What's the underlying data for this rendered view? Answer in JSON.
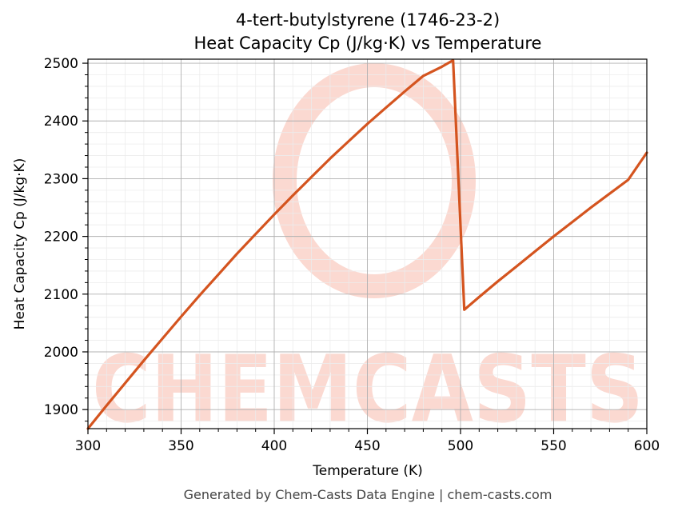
{
  "chart_data": {
    "type": "line",
    "title": [
      "4-tert-butylstyrene (1746-23-2)",
      "Heat Capacity Cp (J/kg·K) vs Temperature"
    ],
    "xlabel": "Temperature (K)",
    "ylabel": "Heat Capacity Cp (J/kg·K)",
    "xlim": [
      300,
      600
    ],
    "ylim": [
      1867,
      2507
    ],
    "xticks": [
      300,
      350,
      400,
      450,
      500,
      550,
      600
    ],
    "yticks": [
      1900,
      2000,
      2100,
      2200,
      2300,
      2400,
      2500
    ],
    "grid": true,
    "legend": "none",
    "series": [
      {
        "color": "#d4541f",
        "x": [
          300,
          310,
          320,
          330,
          340,
          350,
          360,
          370,
          380,
          390,
          400,
          410,
          420,
          430,
          440,
          450,
          460,
          470,
          480,
          490,
          496,
          502,
          510,
          520,
          530,
          540,
          550,
          560,
          570,
          580,
          590,
          600
        ],
        "y": [
          1867,
          1907,
          1946,
          1985,
          2023,
          2061,
          2098,
          2134,
          2170,
          2204,
          2238,
          2271,
          2303,
          2335,
          2365,
          2395,
          2423,
          2451,
          2478,
          2494,
          2505,
          2073,
          2095,
          2122,
          2148,
          2174,
          2200,
          2225,
          2250,
          2274,
          2298,
          2345
        ]
      }
    ]
  },
  "watermark": {
    "text": "CHEMCASTS",
    "color": "#fbd9d1"
  },
  "footer": "Generated by Chem-Casts Data Engine | chem-casts.com"
}
